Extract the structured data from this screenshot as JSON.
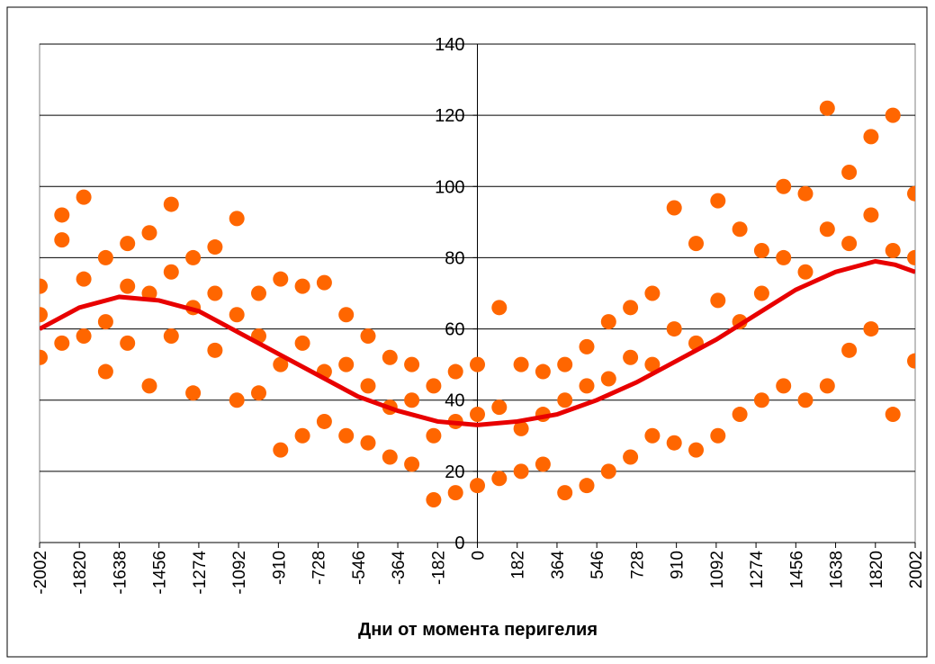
{
  "chart_data": {
    "type": "scatter",
    "x_label": "Дни от момента перигелия",
    "xlim": [
      -2002,
      2002
    ],
    "xticks": [
      -2002,
      -1820,
      -1638,
      -1456,
      -1274,
      -1092,
      -910,
      -728,
      -546,
      -364,
      -182,
      0,
      182,
      364,
      546,
      728,
      910,
      1092,
      1274,
      1456,
      1638,
      1820,
      2002
    ],
    "ylim": [
      0,
      140
    ],
    "yticks": [
      0,
      20,
      40,
      60,
      80,
      100,
      120,
      140
    ],
    "grid": true,
    "series": [
      {
        "color": "#ff6600",
        "style": "markers",
        "x": [
          -2000,
          -2000,
          -2000,
          -1900,
          -1900,
          -1900,
          -1800,
          -1800,
          -1800,
          -1700,
          -1700,
          -1700,
          -1600,
          -1600,
          -1600,
          -1500,
          -1500,
          -1500,
          -1400,
          -1400,
          -1400,
          -1300,
          -1300,
          -1300,
          -1200,
          -1200,
          -1200,
          -1100,
          -1100,
          -1100,
          -1000,
          -1000,
          -1000,
          -900,
          -900,
          -900,
          -800,
          -800,
          -800,
          -700,
          -700,
          -700,
          -600,
          -600,
          -600,
          -500,
          -500,
          -500,
          -400,
          -400,
          -400,
          -300,
          -300,
          -300,
          -200,
          -200,
          -200,
          -100,
          -100,
          -100,
          0,
          0,
          0,
          100,
          100,
          100,
          200,
          200,
          200,
          300,
          300,
          300,
          400,
          400,
          400,
          500,
          500,
          500,
          600,
          600,
          600,
          700,
          700,
          700,
          800,
          800,
          800,
          900,
          900,
          900,
          1000,
          1000,
          1000,
          1100,
          1100,
          1100,
          1200,
          1200,
          1200,
          1300,
          1300,
          1300,
          1400,
          1400,
          1400,
          1500,
          1500,
          1500,
          1600,
          1600,
          1600,
          1700,
          1700,
          1700,
          1800,
          1800,
          1800,
          1900,
          1900,
          1900,
          2000,
          2000,
          2000
        ],
        "values": [
          72,
          52,
          64,
          85,
          56,
          92,
          97,
          58,
          74,
          80,
          48,
          62,
          84,
          56,
          72,
          87,
          44,
          70,
          95,
          58,
          76,
          80,
          42,
          66,
          83,
          54,
          70,
          91,
          40,
          64,
          70,
          42,
          58,
          74,
          26,
          50,
          72,
          30,
          56,
          73,
          34,
          48,
          64,
          30,
          50,
          58,
          28,
          44,
          52,
          24,
          38,
          50,
          22,
          40,
          44,
          12,
          30,
          48,
          14,
          34,
          50,
          16,
          36,
          66,
          18,
          38,
          50,
          20,
          32,
          48,
          22,
          36,
          50,
          14,
          40,
          55,
          16,
          44,
          62,
          20,
          46,
          66,
          24,
          52,
          70,
          30,
          50,
          94,
          28,
          60,
          84,
          26,
          56,
          96,
          30,
          68,
          88,
          36,
          62,
          82,
          40,
          70,
          100,
          44,
          80,
          98,
          40,
          76,
          122,
          44,
          88,
          104,
          54,
          84,
          114,
          60,
          92,
          120,
          36,
          82,
          98,
          51,
          80
        ]
      },
      {
        "color": "#e80000",
        "style": "line",
        "x": [
          -2002,
          -1820,
          -1638,
          -1456,
          -1274,
          -1092,
          -910,
          -728,
          -546,
          -364,
          -182,
          0,
          182,
          364,
          546,
          728,
          910,
          1092,
          1274,
          1456,
          1638,
          1820,
          1911,
          2002
        ],
        "values": [
          60,
          66,
          69,
          68,
          65,
          59,
          53,
          47,
          41,
          37,
          34,
          33,
          34,
          36,
          40,
          45,
          51,
          57,
          64,
          71,
          76,
          79,
          78,
          76
        ]
      }
    ]
  }
}
